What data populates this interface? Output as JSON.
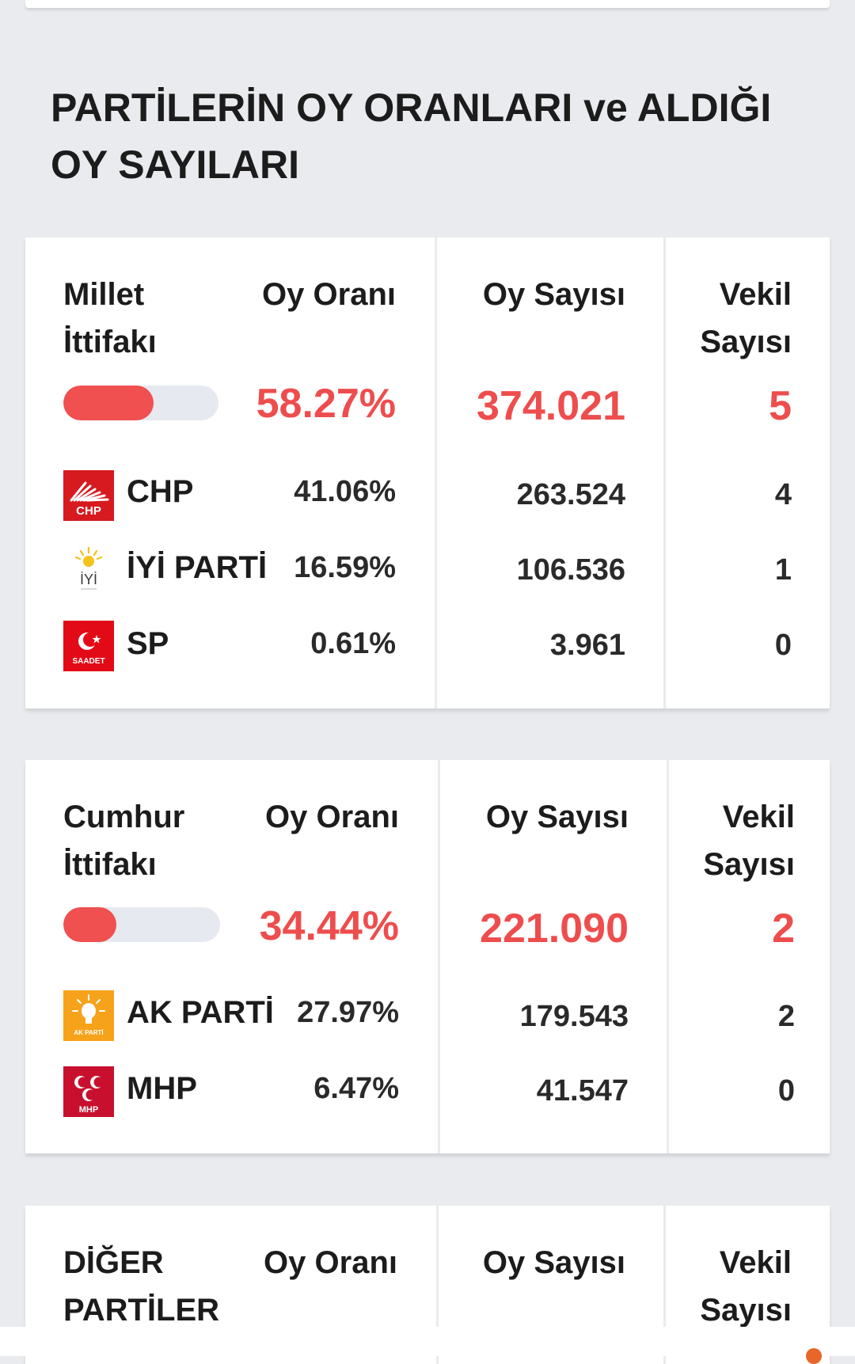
{
  "page": {
    "title": "PARTİLERİN OY ORANLARI ve ALDIĞI OY SAYILARI"
  },
  "columns": {
    "oy_orani": "Oy Oranı",
    "oy_sayisi": "Oy Sayısı",
    "vekil_line1": "Vekil",
    "vekil_line2": "Sayısı"
  },
  "alliances": [
    {
      "name_line1": "Millet",
      "name_line2": "İttifakı",
      "vote_share": "58.27%",
      "vote_share_fraction": 0.58,
      "votes": "374.021",
      "seats": "5",
      "parties": [
        {
          "name": "CHP",
          "share": "41.06%",
          "votes": "263.524",
          "seats": "4",
          "logo_icon": "chp-logo-icon",
          "logo_text": "CHP",
          "logo_color": "#d71920"
        },
        {
          "name": "İYİ PARTİ",
          "share": "16.59%",
          "votes": "106.536",
          "seats": "1",
          "logo_icon": "iyi-parti-logo-icon",
          "logo_text": "İYİ",
          "logo_color": "#ffffff"
        },
        {
          "name": "SP",
          "share": "0.61%",
          "votes": "3.961",
          "seats": "0",
          "logo_icon": "saadet-logo-icon",
          "logo_text": "SAADET",
          "logo_color": "#e30a17"
        }
      ]
    },
    {
      "name_line1": "Cumhur",
      "name_line2": "İttifakı",
      "vote_share": "34.44%",
      "vote_share_fraction": 0.34,
      "votes": "221.090",
      "seats": "2",
      "parties": [
        {
          "name": "AK PARTİ",
          "share": "27.97%",
          "votes": "179.543",
          "seats": "2",
          "logo_icon": "ak-parti-logo-icon",
          "logo_text": "AK PARTİ",
          "logo_color": "#f7a21b"
        },
        {
          "name": "MHP",
          "share": "6.47%",
          "votes": "41.547",
          "seats": "0",
          "logo_icon": "mhp-logo-icon",
          "logo_text": "MHP",
          "logo_color": "#c8102e"
        }
      ]
    }
  ],
  "others": {
    "name_line1": "DİĞER",
    "name_line2": "PARTİLER"
  },
  "colors": {
    "accent": "#ee4d4d",
    "background": "#e9ebee"
  }
}
